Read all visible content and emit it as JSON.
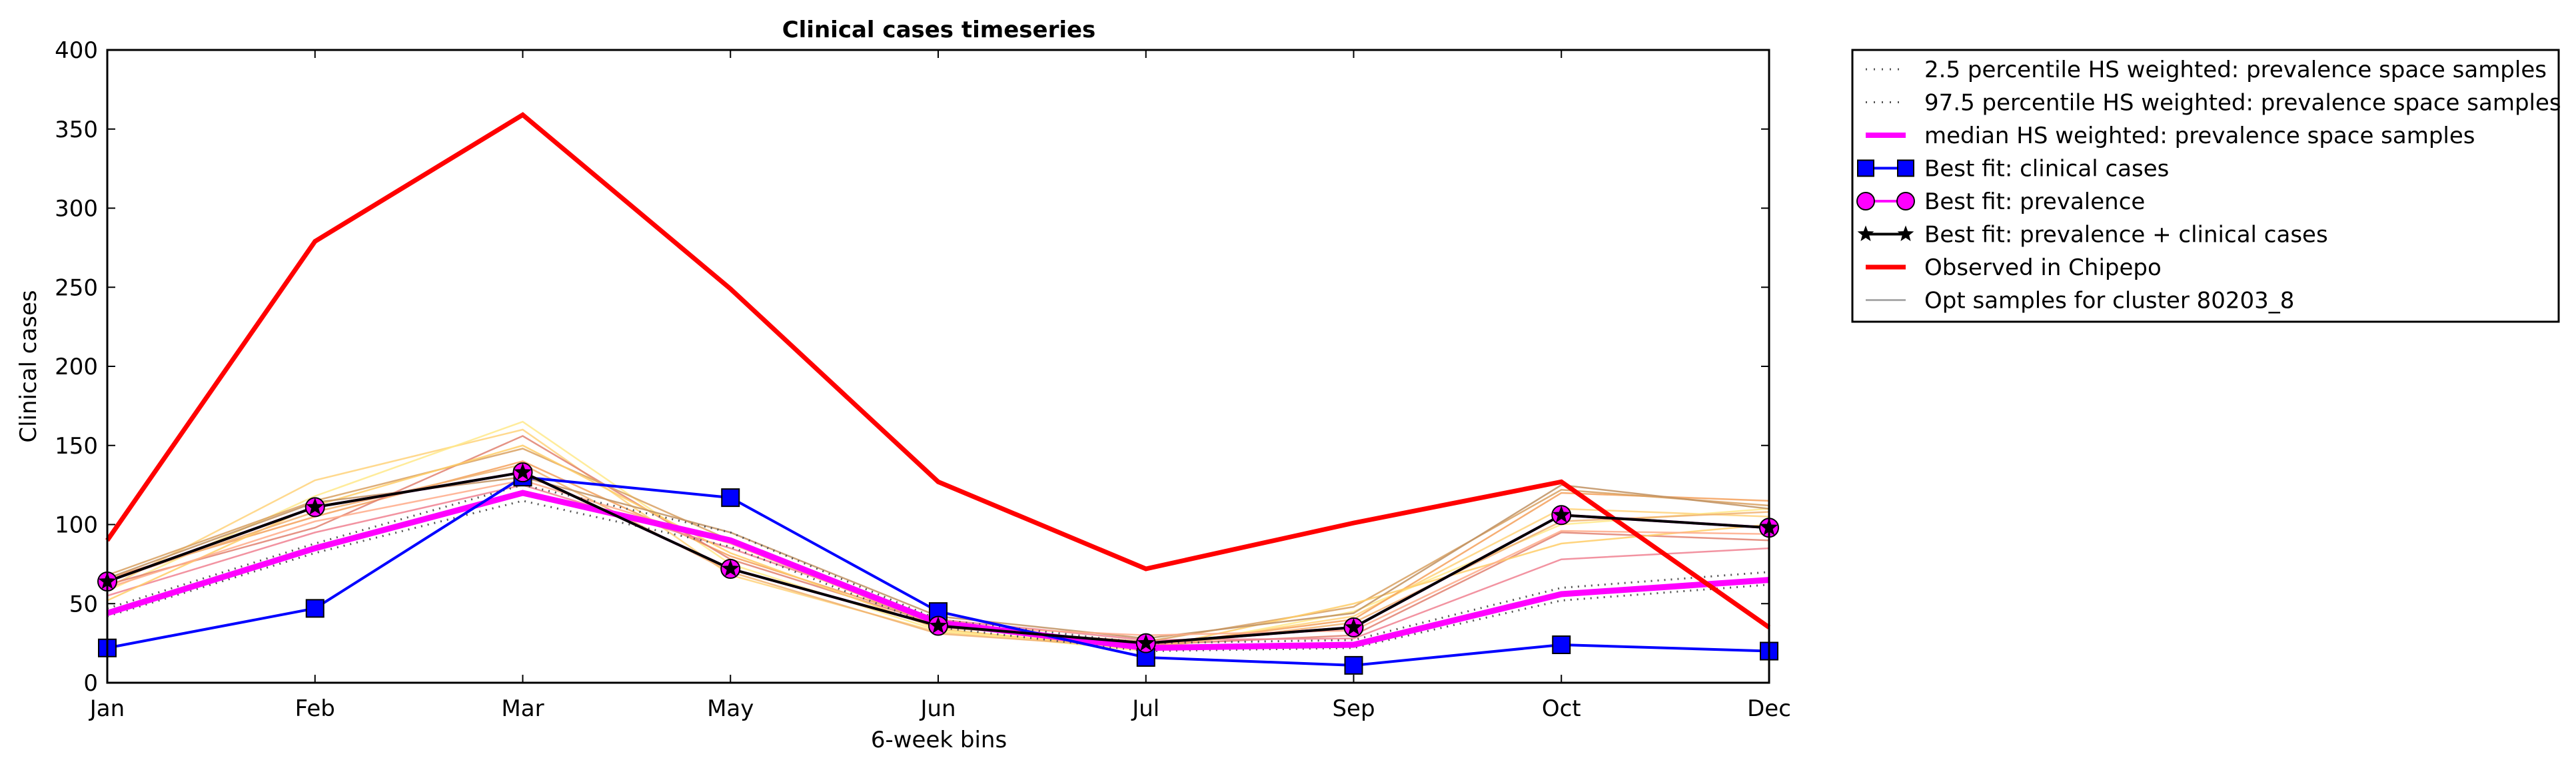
{
  "chart_data": {
    "type": "line",
    "title": "Clinical cases timeseries",
    "xlabel": "6-week bins",
    "ylabel": "Clinical cases",
    "categories": [
      "Jan",
      "Feb",
      "Mar",
      "May",
      "Jun",
      "Jul",
      "Sep",
      "Oct",
      "Dec"
    ],
    "ylim": [
      0,
      400
    ],
    "yticks": [
      0,
      50,
      100,
      150,
      200,
      250,
      300,
      350,
      400
    ],
    "grid": false,
    "legend_position": "outside-right",
    "series": [
      {
        "name": "2.5 percentile HS weighted: prevalence space samples",
        "style": "dotted",
        "color": "#555555",
        "values": [
          42,
          82,
          115,
          86,
          35,
          20,
          22,
          52,
          62
        ]
      },
      {
        "name": "97.5 percentile HS weighted: prevalence space samples",
        "style": "dotted",
        "color": "#555555",
        "values": [
          47,
          88,
          125,
          95,
          40,
          25,
          27,
          60,
          70
        ]
      },
      {
        "name": "median HS weighted: prevalence space samples",
        "style": "solid",
        "color": "#ff00ff",
        "values": [
          44,
          85,
          120,
          90,
          38,
          22,
          24,
          56,
          65
        ]
      },
      {
        "name": "Best fit: clinical cases",
        "style": "solid",
        "marker": "square",
        "color": "#0000ff",
        "values": [
          22,
          47,
          130,
          117,
          45,
          16,
          11,
          24,
          20
        ]
      },
      {
        "name": "Best fit: prevalence",
        "style": "solid",
        "marker": "circle",
        "color": "#ff00ff",
        "values": [
          64,
          111,
          133,
          72,
          36,
          25,
          35,
          106,
          98
        ]
      },
      {
        "name": "Best fit: prevalence + clinical cases",
        "style": "solid",
        "marker": "star",
        "color": "#000000",
        "values": [
          64,
          111,
          133,
          72,
          36,
          25,
          35,
          106,
          98
        ]
      },
      {
        "name": "Observed in Chipepo",
        "style": "solid",
        "color": "#ff0000",
        "values": [
          90,
          279,
          359,
          249,
          127,
          72,
          101,
          127,
          35
        ]
      },
      {
        "name": "Opt samples for cluster 80203_8",
        "style": "solid",
        "color": "#aaaaaa"
      }
    ],
    "sample_lines": [
      {
        "color": "#ffd27a",
        "values": [
          60,
          128,
          160,
          68,
          32,
          22,
          42,
          110,
          105
        ]
      },
      {
        "color": "#ffe98a",
        "values": [
          58,
          118,
          165,
          75,
          33,
          20,
          45,
          100,
          110
        ]
      },
      {
        "color": "#f5a05a",
        "values": [
          66,
          105,
          140,
          80,
          38,
          23,
          40,
          120,
          115
        ]
      },
      {
        "color": "#e08070",
        "values": [
          62,
          98,
          156,
          78,
          37,
          24,
          30,
          95,
          90
        ]
      },
      {
        "color": "#f08090",
        "values": [
          55,
          95,
          125,
          85,
          40,
          27,
          28,
          78,
          85
        ]
      },
      {
        "color": "#d8a060",
        "values": [
          68,
          115,
          148,
          90,
          35,
          26,
          48,
          122,
          112
        ]
      },
      {
        "color": "#ffcc66",
        "values": [
          52,
          112,
          150,
          82,
          34,
          21,
          50,
          88,
          100
        ]
      },
      {
        "color": "#f0b070",
        "values": [
          64,
          108,
          138,
          70,
          31,
          22,
          38,
          102,
          108
        ]
      },
      {
        "color": "#c09060",
        "values": [
          66,
          114,
          130,
          95,
          42,
          28,
          44,
          125,
          110
        ]
      },
      {
        "color": "#ffaa88",
        "values": [
          60,
          102,
          128,
          88,
          36,
          30,
          33,
          96,
          94
        ]
      }
    ]
  }
}
